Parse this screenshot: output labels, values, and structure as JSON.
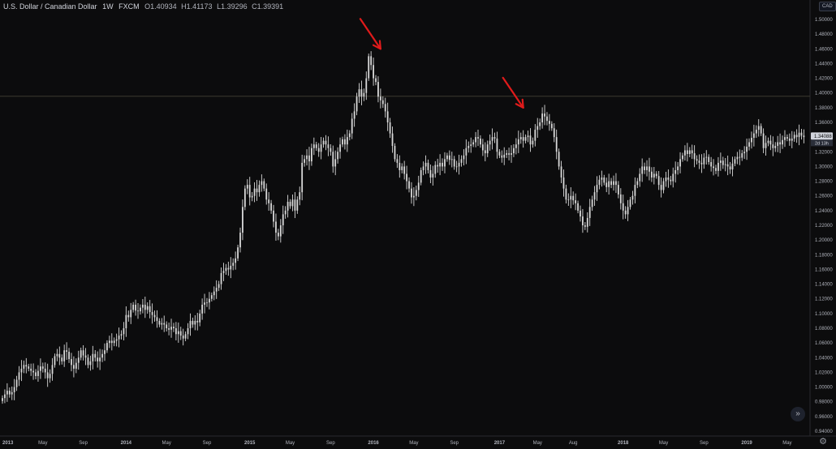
{
  "header": {
    "symbol_name": "U.S. Dollar / Canadian Dollar",
    "interval": "1W",
    "source": "FXCM",
    "open": "O1.40934",
    "high": "H1.41173",
    "low": "L1.39296",
    "close": "C1.39391"
  },
  "currency_badge": "CAD",
  "price_tag": {
    "price": "1.34088",
    "countdown": "2d 13h"
  },
  "nav_button": {
    "icon": "double-chevron-right-icon",
    "glyph": "»"
  },
  "settings": {
    "icon": "gear-icon",
    "glyph": "⚙"
  },
  "colors": {
    "background": "#0c0c0d",
    "candle": "#d9d9d9",
    "arrow": "#e01b1b",
    "axis_text": "#b2b5be",
    "crosshair": "#3c3a30"
  },
  "chart_data": {
    "type": "candlestick",
    "title": "U.S. Dollar / Canadian Dollar",
    "interval": "1W",
    "ylim": [
      0.94,
      1.5
    ],
    "y_ticks": [
      "1.50000",
      "1.48000",
      "1.46000",
      "1.44000",
      "1.42000",
      "1.40000",
      "1.38000",
      "1.36000",
      "1.34000",
      "1.32000",
      "1.30000",
      "1.28000",
      "1.26000",
      "1.24000",
      "1.22000",
      "1.20000",
      "1.18000",
      "1.16000",
      "1.14000",
      "1.12000",
      "1.10000",
      "1.08000",
      "1.06000",
      "1.04000",
      "1.02000",
      "1.00000",
      "0.98000",
      "0.96000",
      "0.94000"
    ],
    "y_tick_values": [
      1.5,
      1.48,
      1.46,
      1.44,
      1.42,
      1.4,
      1.38,
      1.36,
      1.34,
      1.32,
      1.3,
      1.28,
      1.26,
      1.24,
      1.22,
      1.2,
      1.18,
      1.16,
      1.14,
      1.12,
      1.1,
      1.08,
      1.06,
      1.04,
      1.02,
      1.0,
      0.98,
      0.96,
      0.94
    ],
    "x_ticks": [
      "2013",
      "May",
      "Sep",
      "2014",
      "May",
      "Sep",
      "2015",
      "May",
      "Sep",
      "2016",
      "May",
      "Sep",
      "2017",
      "May",
      "Aug",
      "2018",
      "May",
      "Sep",
      "2019",
      "May"
    ],
    "x_tick_weeks": [
      0,
      17,
      34,
      52,
      69,
      86,
      104,
      121,
      138,
      156,
      173,
      190,
      209,
      225,
      240,
      261,
      278,
      295,
      313,
      330
    ],
    "x_range_weeks": [
      0,
      336
    ],
    "crosshair_price": 1.3955,
    "current_price": 1.34088,
    "closes": [
      0.985,
      0.99,
      0.995,
      0.99,
      0.993,
      1.0,
      1.01,
      1.02,
      1.025,
      1.03,
      1.028,
      1.025,
      1.022,
      1.02,
      1.015,
      1.022,
      1.028,
      1.025,
      1.02,
      1.012,
      1.018,
      1.03,
      1.042,
      1.045,
      1.04,
      1.035,
      1.05,
      1.048,
      1.038,
      1.03,
      1.025,
      1.033,
      1.04,
      1.05,
      1.043,
      1.04,
      1.03,
      1.035,
      1.045,
      1.04,
      1.035,
      1.04,
      1.045,
      1.05,
      1.06,
      1.063,
      1.06,
      1.063,
      1.065,
      1.07,
      1.072,
      1.08,
      1.098,
      1.095,
      1.105,
      1.112,
      1.104,
      1.103,
      1.108,
      1.112,
      1.105,
      1.11,
      1.102,
      1.098,
      1.095,
      1.09,
      1.085,
      1.087,
      1.085,
      1.08,
      1.078,
      1.082,
      1.08,
      1.072,
      1.076,
      1.07,
      1.066,
      1.072,
      1.08,
      1.09,
      1.085,
      1.09,
      1.088,
      1.1,
      1.112,
      1.115,
      1.115,
      1.12,
      1.125,
      1.13,
      1.135,
      1.14,
      1.155,
      1.158,
      1.162,
      1.16,
      1.165,
      1.169,
      1.175,
      1.19,
      1.21,
      1.245,
      1.27,
      1.275,
      1.258,
      1.26,
      1.27,
      1.265,
      1.275,
      1.28,
      1.27,
      1.255,
      1.25,
      1.24,
      1.225,
      1.21,
      1.205,
      1.22,
      1.235,
      1.24,
      1.252,
      1.246,
      1.255,
      1.24,
      1.255,
      1.265,
      1.305,
      1.31,
      1.315,
      1.307,
      1.325,
      1.33,
      1.325,
      1.32,
      1.33,
      1.335,
      1.33,
      1.325,
      1.32,
      1.3,
      1.31,
      1.32,
      1.33,
      1.337,
      1.33,
      1.34,
      1.345,
      1.365,
      1.375,
      1.395,
      1.405,
      1.395,
      1.4,
      1.42,
      1.45,
      1.438,
      1.42,
      1.415,
      1.395,
      1.39,
      1.385,
      1.375,
      1.36,
      1.345,
      1.328,
      1.31,
      1.305,
      1.295,
      1.3,
      1.29,
      1.28,
      1.27,
      1.258,
      1.26,
      1.268,
      1.278,
      1.295,
      1.3,
      1.305,
      1.295,
      1.285,
      1.29,
      1.302,
      1.3,
      1.305,
      1.3,
      1.31,
      1.315,
      1.309,
      1.31,
      1.3,
      1.3,
      1.305,
      1.31,
      1.315,
      1.325,
      1.328,
      1.33,
      1.333,
      1.34,
      1.338,
      1.33,
      1.322,
      1.318,
      1.33,
      1.335,
      1.34,
      1.338,
      1.32,
      1.315,
      1.312,
      1.316,
      1.318,
      1.316,
      1.318,
      1.325,
      1.33,
      1.337,
      1.34,
      1.335,
      1.34,
      1.342,
      1.33,
      1.335,
      1.35,
      1.355,
      1.36,
      1.372,
      1.368,
      1.362,
      1.358,
      1.352,
      1.34,
      1.32,
      1.3,
      1.285,
      1.27,
      1.255,
      1.255,
      1.26,
      1.254,
      1.25,
      1.24,
      1.232,
      1.22,
      1.218,
      1.23,
      1.245,
      1.255,
      1.265,
      1.275,
      1.282,
      1.285,
      1.278,
      1.272,
      1.28,
      1.275,
      1.28,
      1.275,
      1.262,
      1.25,
      1.24,
      1.235,
      1.245,
      1.255,
      1.26,
      1.275,
      1.28,
      1.29,
      1.3,
      1.295,
      1.3,
      1.293,
      1.285,
      1.29,
      1.287,
      1.275,
      1.268,
      1.28,
      1.285,
      1.282,
      1.28,
      1.29,
      1.295,
      1.3,
      1.31,
      1.315,
      1.322,
      1.317,
      1.322,
      1.318,
      1.31,
      1.308,
      1.305,
      1.303,
      1.312,
      1.313,
      1.306,
      1.3,
      1.298,
      1.294,
      1.305,
      1.308,
      1.302,
      1.303,
      1.3,
      1.296,
      1.304,
      1.31,
      1.313,
      1.312,
      1.318,
      1.32,
      1.327,
      1.333,
      1.339,
      1.345,
      1.35,
      1.355,
      1.345,
      1.325,
      1.332,
      1.335,
      1.33,
      1.325,
      1.328,
      1.333,
      1.33,
      1.336,
      1.34,
      1.338,
      1.335,
      1.338,
      1.343,
      1.34,
      1.346,
      1.342,
      1.34
    ],
    "annotations": [
      {
        "type": "arrow",
        "color": "#e01b1b",
        "target_week": 159,
        "target_price": 1.46
      },
      {
        "type": "arrow",
        "color": "#e01b1b",
        "target_week": 219,
        "target_price": 1.38
      }
    ]
  }
}
